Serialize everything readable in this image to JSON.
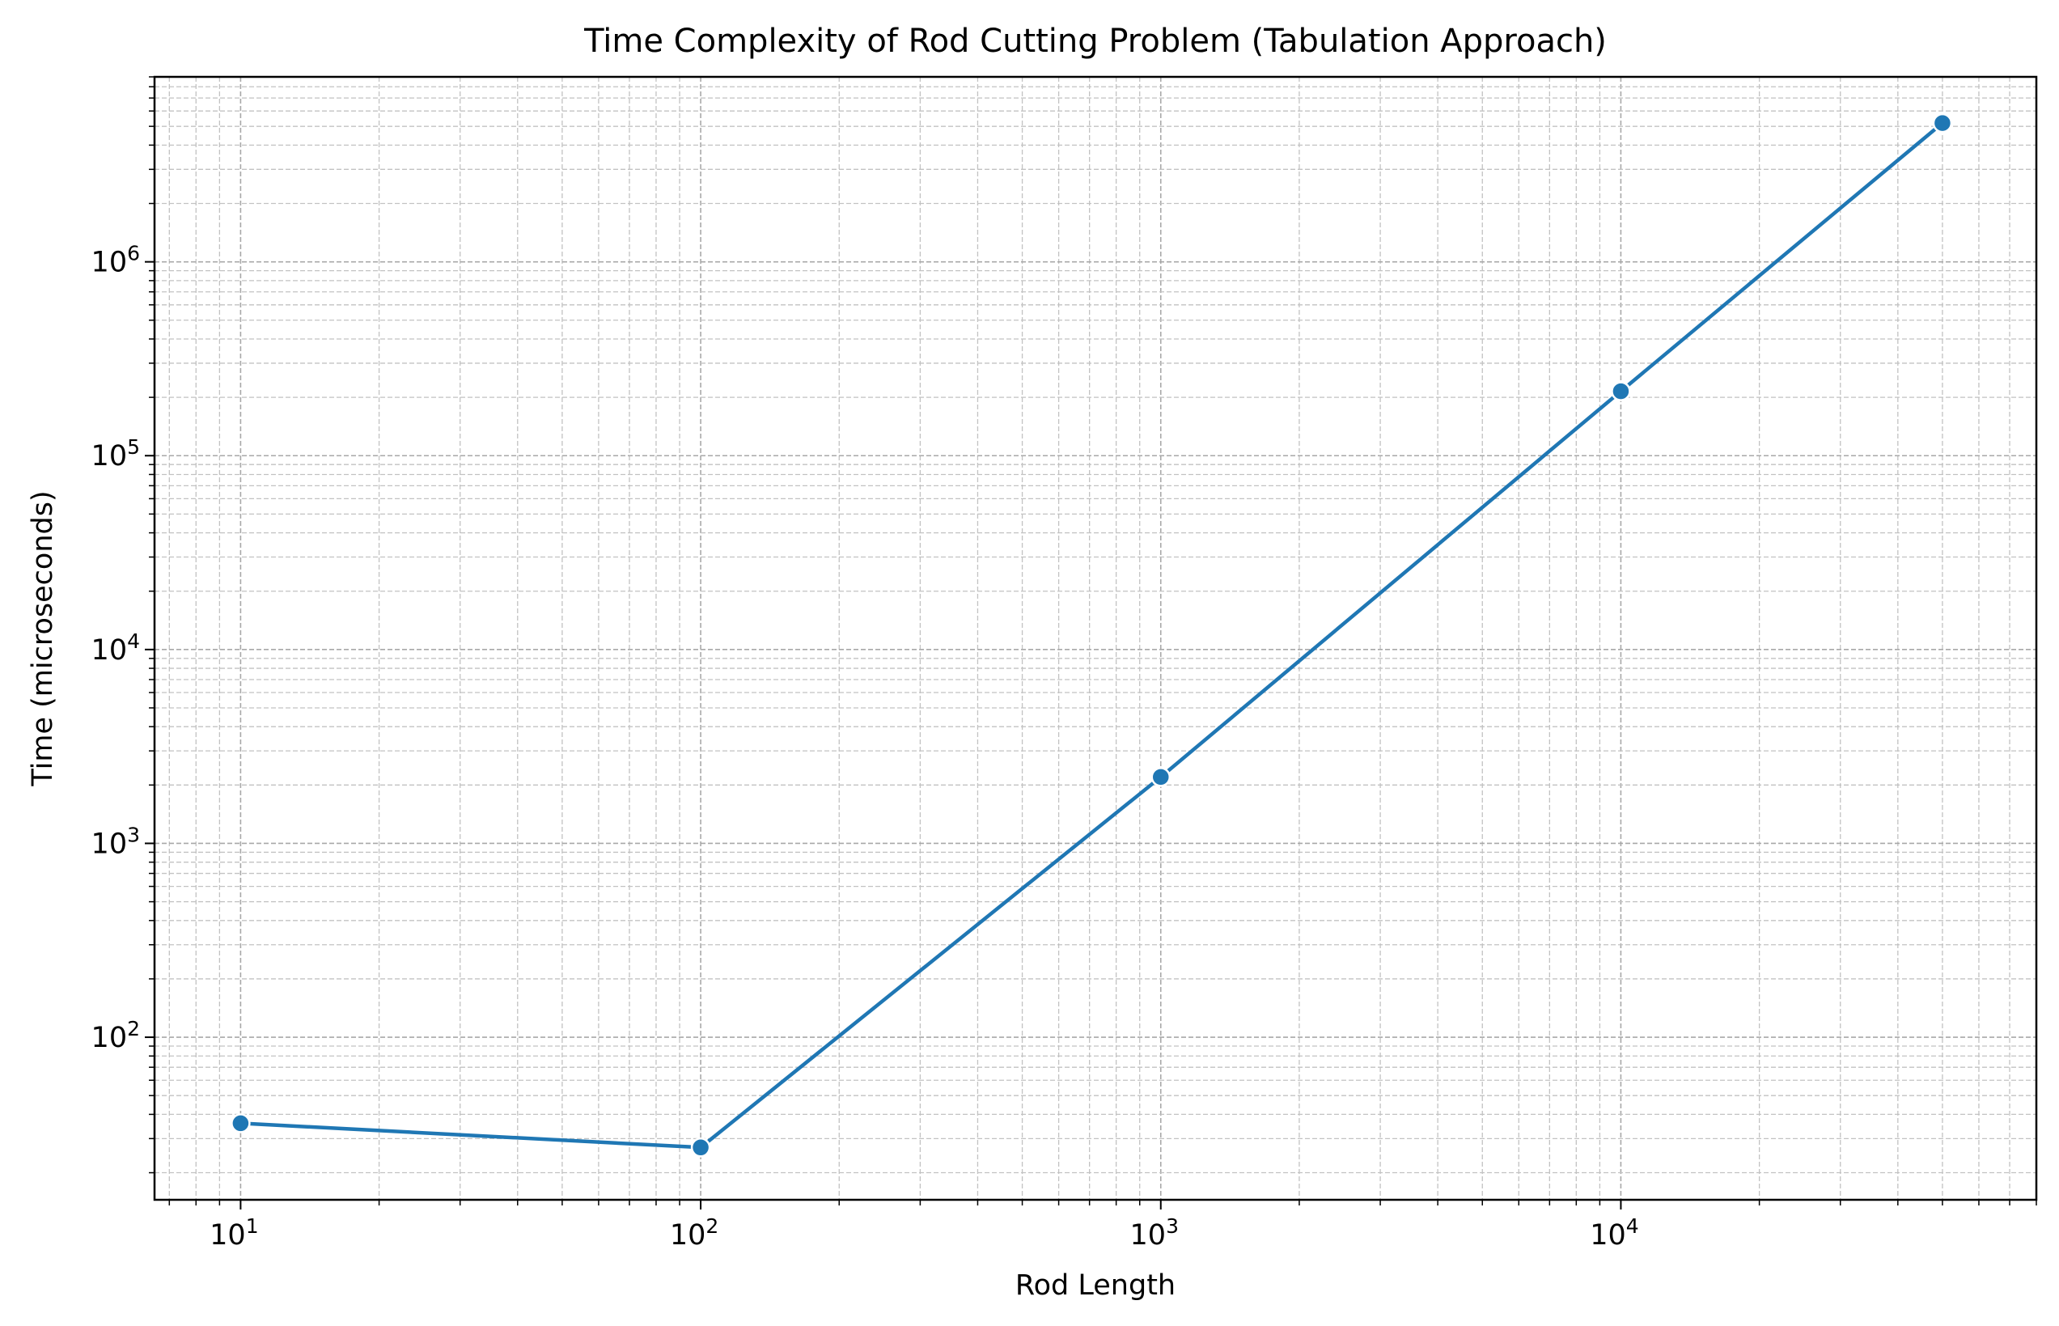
{
  "chart_data": {
    "type": "line",
    "title": "Time Complexity of Rod Cutting Problem (Tabulation Approach)",
    "xlabel": "Rod Length",
    "ylabel": "Time (microseconds)",
    "xscale": "log",
    "yscale": "log",
    "xlim": [
      6.5,
      80000
    ],
    "ylim": [
      14.5,
      9000000
    ],
    "grid": true,
    "grid_which": "both",
    "grid_style": "dashed",
    "legend": "none",
    "x_ticks": [
      {
        "base": "10",
        "exp": "1",
        "value": 10
      },
      {
        "base": "10",
        "exp": "2",
        "value": 100
      },
      {
        "base": "10",
        "exp": "3",
        "value": 1000
      },
      {
        "base": "10",
        "exp": "4",
        "value": 10000
      }
    ],
    "y_ticks": [
      {
        "base": "10",
        "exp": "2",
        "value": 100
      },
      {
        "base": "10",
        "exp": "3",
        "value": 1000
      },
      {
        "base": "10",
        "exp": "4",
        "value": 10000
      },
      {
        "base": "10",
        "exp": "5",
        "value": 100000
      },
      {
        "base": "10",
        "exp": "6",
        "value": 1000000
      }
    ],
    "series": [
      {
        "name": "Tabulation",
        "color": "#1f77b4",
        "marker": "circle",
        "x": [
          10,
          100,
          1000,
          10000,
          50000
        ],
        "y": [
          36,
          27,
          2200,
          215000,
          5200000
        ]
      }
    ]
  }
}
